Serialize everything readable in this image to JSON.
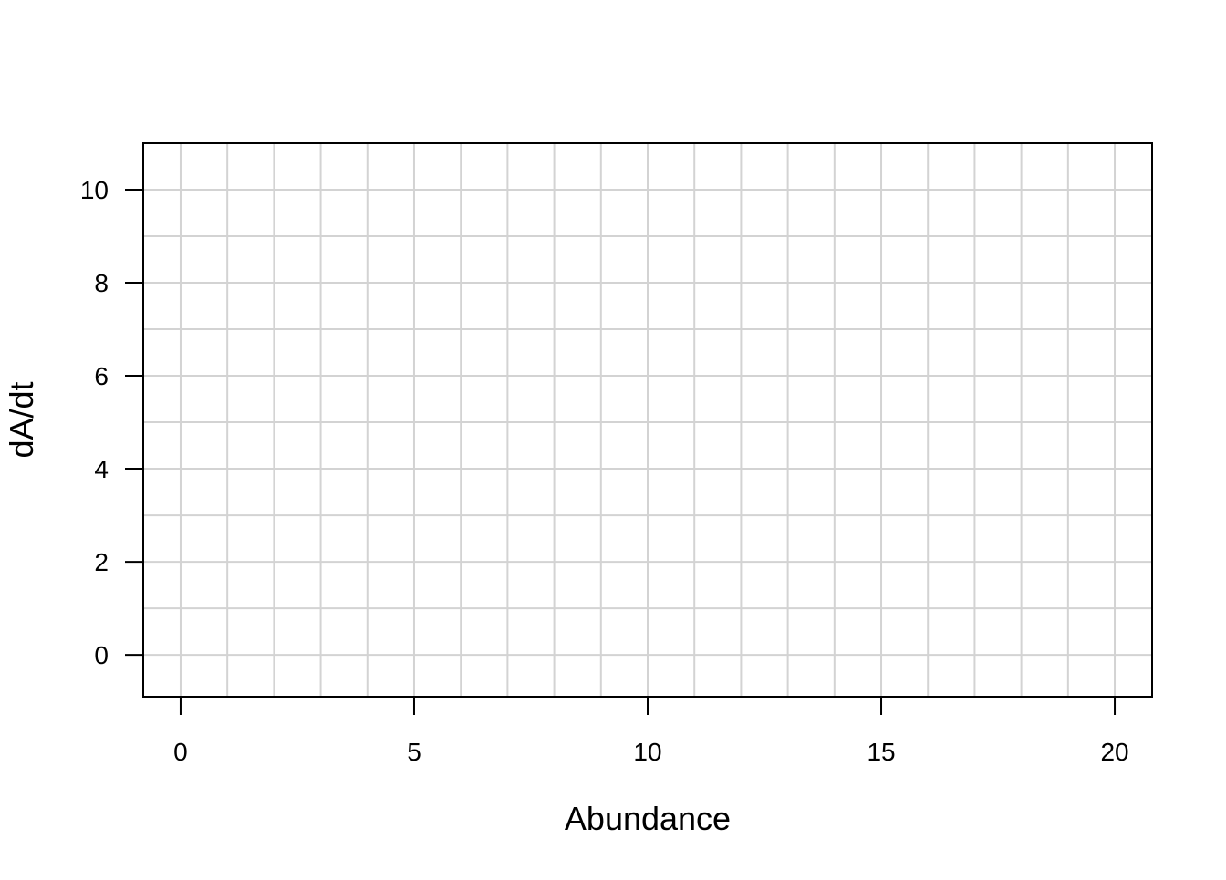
{
  "chart_data": {
    "type": "line",
    "title": "",
    "xlabel": "Abundance",
    "ylabel": "dA/dt",
    "xlim": [
      -0.8,
      20.8
    ],
    "ylim": [
      -0.9,
      11.0
    ],
    "x_ticks": [
      0,
      5,
      10,
      15,
      20
    ],
    "y_ticks": [
      0,
      2,
      4,
      6,
      8,
      10
    ],
    "x_grid": [
      0,
      1,
      2,
      3,
      4,
      5,
      6,
      7,
      8,
      9,
      10,
      11,
      12,
      13,
      14,
      15,
      16,
      17,
      18,
      19,
      20
    ],
    "y_grid": [
      0,
      1,
      2,
      3,
      4,
      5,
      6,
      7,
      8,
      9,
      10
    ],
    "grid": true,
    "grid_color": "#d3d3d3",
    "axis_color": "#000000",
    "series": []
  }
}
